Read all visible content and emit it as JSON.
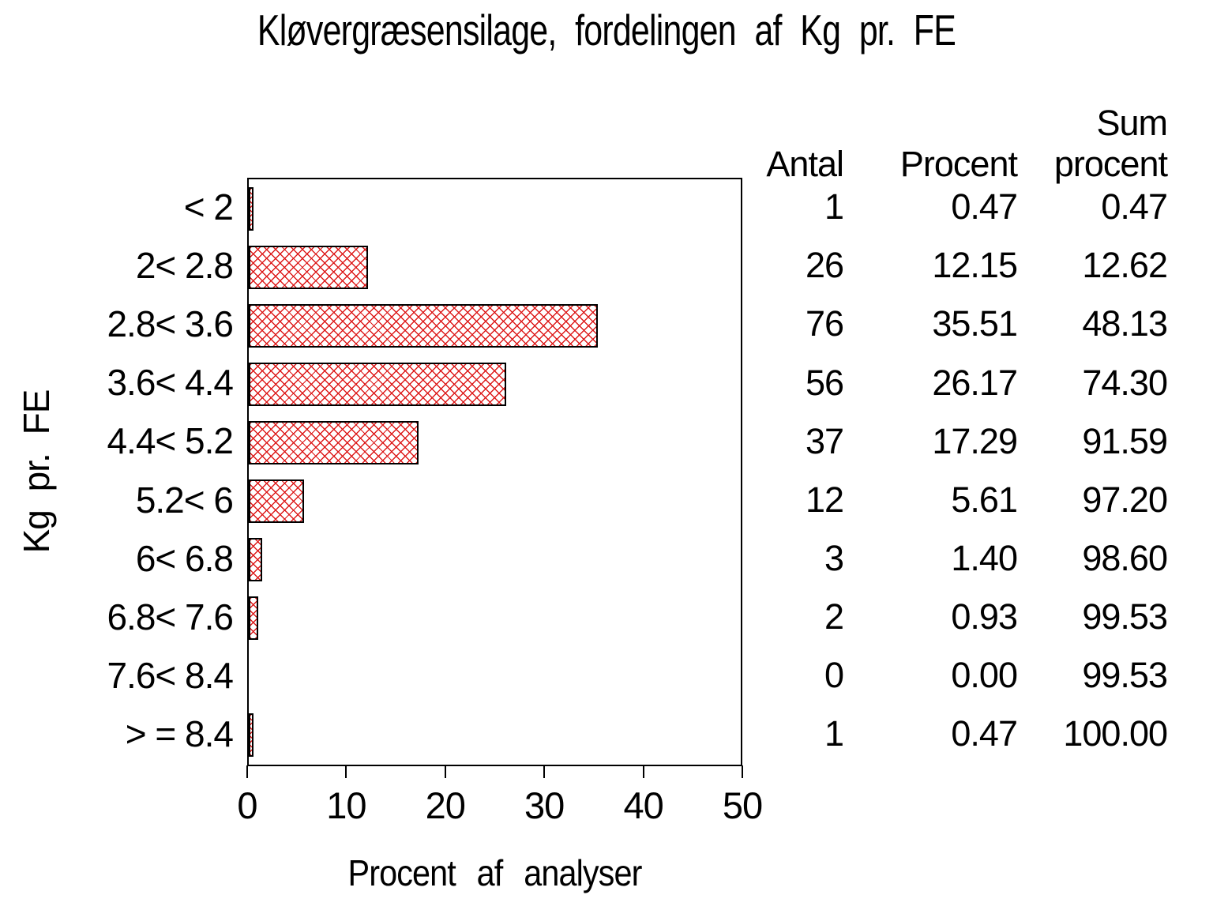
{
  "title": "Kløvergræsensilage, fordelingen af Kg pr. FE",
  "chart_data": {
    "type": "bar",
    "orientation": "horizontal",
    "title": "Kløvergræsensilage, fordelingen af Kg pr. FE",
    "categories": [
      "< 2",
      "2< 2.8",
      "2.8< 3.6",
      "3.6< 4.4",
      "4.4< 5.2",
      "5.2< 6",
      "6< 6.8",
      "6.8< 7.6",
      "7.6< 8.4",
      "> = 8.4"
    ],
    "series": [
      {
        "name": "Procent af analyser",
        "values": [
          0.47,
          12.15,
          35.51,
          26.17,
          17.29,
          5.61,
          1.4,
          0.93,
          0.0,
          0.47
        ]
      }
    ],
    "xlabel": "Procent af analyser",
    "ylabel": "Kg pr. FE",
    "xlim": [
      0,
      50
    ],
    "xticks": [
      0,
      10,
      20,
      30,
      40,
      50
    ],
    "grid": false,
    "bar_style": {
      "fill_pattern": "crosshatch",
      "hatch_color": "#dd1a1a",
      "border_color": "#000000",
      "background": "#ffffff"
    },
    "table": {
      "headers": [
        "Antal",
        "Procent",
        "Sum procent"
      ],
      "header_top": "Sum",
      "header_row": [
        "Antal",
        "Procent",
        "procent"
      ],
      "rows": [
        [
          "1",
          "0.47",
          "0.47"
        ],
        [
          "26",
          "12.15",
          "12.62"
        ],
        [
          "76",
          "35.51",
          "48.13"
        ],
        [
          "56",
          "26.17",
          "74.30"
        ],
        [
          "37",
          "17.29",
          "91.59"
        ],
        [
          "12",
          "5.61",
          "97.20"
        ],
        [
          "3",
          "1.40",
          "98.60"
        ],
        [
          "2",
          "0.93",
          "99.53"
        ],
        [
          "0",
          "0.00",
          "99.53"
        ],
        [
          "1",
          "0.47",
          "100.00"
        ]
      ]
    }
  }
}
